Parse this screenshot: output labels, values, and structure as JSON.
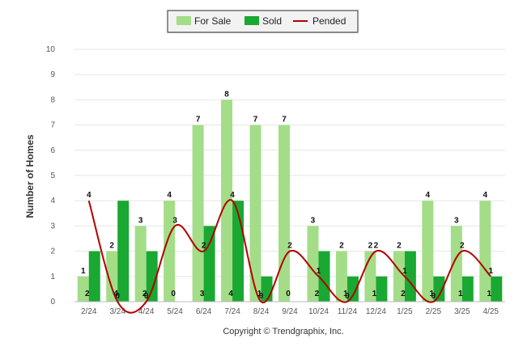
{
  "chart_data": {
    "type": "bar",
    "categories": [
      "2/24",
      "3/24",
      "4/24",
      "5/24",
      "6/24",
      "7/24",
      "8/24",
      "9/24",
      "10/24",
      "11/24",
      "12/24",
      "1/25",
      "2/25",
      "3/25",
      "4/25"
    ],
    "series": [
      {
        "name": "For Sale",
        "type": "bar",
        "color": "#a3dd88",
        "values": [
          1,
          2,
          3,
          4,
          7,
          8,
          7,
          7,
          3,
          2,
          2,
          2,
          4,
          3,
          4
        ]
      },
      {
        "name": "Sold",
        "type": "bar",
        "color": "#19a832",
        "values": [
          2,
          4,
          2,
          0,
          3,
          4,
          1,
          0,
          2,
          1,
          1,
          2,
          1,
          1,
          1
        ]
      },
      {
        "name": "Pended",
        "type": "line",
        "color": "#b30000",
        "values": [
          4,
          0,
          0,
          3,
          2,
          4,
          0,
          2,
          1,
          0,
          2,
          1,
          0,
          2,
          1
        ]
      }
    ],
    "ylabel": "Number of Homes",
    "xlabel": "",
    "ylim": [
      0,
      10
    ],
    "yticks": [
      0,
      1,
      2,
      3,
      4,
      5,
      6,
      7,
      8,
      9,
      10
    ],
    "grid": true,
    "legend": "top-center"
  },
  "footer": {
    "copyright": "Copyright © Trendgraphix, Inc."
  }
}
